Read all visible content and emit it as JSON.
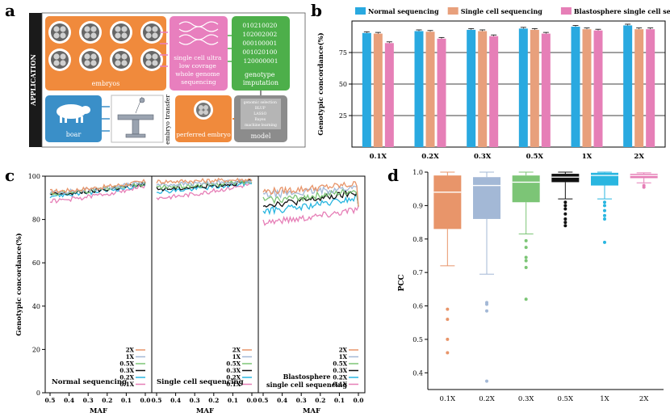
{
  "panels": {
    "a": {
      "letter": "a",
      "side_label": "APPLICATION",
      "embryos_label": "embryos",
      "seq_label_lines": [
        "single cell ultra",
        "low covrage",
        "whole genome",
        "sequencing"
      ],
      "genotype_lines": [
        "010210020",
        "102002002",
        "000100001",
        "001020100",
        "120000001"
      ],
      "imputation_lines": [
        "genotype",
        "imputation"
      ],
      "model_lines": [
        "genomic selection",
        "BLUP",
        "LASSO",
        "Bayes",
        "machine learning"
      ],
      "model_label": "model",
      "preferred_label": "perferred embryo",
      "transfer_label": "embryo transfer",
      "boar_label": "boar",
      "colors": {
        "orange": "#f08a3c",
        "pink": "#e87fbe",
        "green": "#4daf4a",
        "blue": "#3a8fc8",
        "gray": "#8c8c8c"
      }
    },
    "b": {
      "letter": "b"
    },
    "c": {
      "letter": "c"
    },
    "d": {
      "letter": "d"
    }
  },
  "chart_data": [
    {
      "id": "b",
      "type": "bar",
      "ylabel": "Genotypic concordance(%)",
      "ylim": [
        0,
        100
      ],
      "yticks": [
        25,
        50,
        75
      ],
      "categories": [
        "0.1X",
        "0.2X",
        "0.3X",
        "0.5X",
        "1X",
        "2X"
      ],
      "series": [
        {
          "name": "Normal sequencing",
          "color": "#29a9e0",
          "values": [
            90.5,
            92,
            93,
            94,
            95.5,
            96.5
          ]
        },
        {
          "name": "Single cell sequencing",
          "color": "#e8a07c",
          "values": [
            90,
            91.5,
            92,
            93,
            93.5,
            93.5
          ]
        },
        {
          "name": "Blastosphere single cell sequencing",
          "color": "#e67fb7",
          "values": [
            82.5,
            86,
            88,
            90,
            92.5,
            93.5
          ]
        }
      ],
      "legend": "top"
    },
    {
      "id": "c",
      "type": "line",
      "ylabel": "Genotypic concordance(%)",
      "xlabel": "MAF",
      "ylim": [
        0,
        100
      ],
      "yticks": [
        0,
        20,
        40,
        60,
        80,
        100
      ],
      "xticks": [
        "0.5",
        "0.4",
        "0.3",
        "0.2",
        "0.1",
        "0.0"
      ],
      "subplots": [
        "Normal sequencing",
        "Single cell sequencing",
        "Blastosphere single cell sequencing"
      ],
      "series_names": [
        "2X",
        "1X",
        "0.5X",
        "0.3X",
        "0.2X",
        "0.1X"
      ],
      "series_colors": [
        "#e8956a",
        "#a3b8d6",
        "#7cc576",
        "#111111",
        "#29b6e0",
        "#e67fb7"
      ],
      "levels": [
        [
          93,
          92.5,
          92,
          91.5,
          91,
          88.5
        ],
        [
          97.5,
          96,
          95,
          94,
          93,
          90
        ],
        [
          93,
          91.5,
          89,
          87,
          84,
          79
        ]
      ],
      "end_levels": [
        [
          97.5,
          97,
          96.5,
          96.5,
          96,
          95.5
        ],
        [
          98.5,
          98,
          97.5,
          97.5,
          97,
          96.5
        ],
        [
          96.5,
          95,
          93.5,
          92.5,
          90,
          85
        ]
      ]
    },
    {
      "id": "d",
      "type": "box",
      "ylabel": "PCC",
      "ylim": [
        0.35,
        1.0
      ],
      "yticks": [
        0.4,
        0.5,
        0.6,
        0.7,
        0.8,
        0.9,
        1.0
      ],
      "categories": [
        "0.1X",
        "0.2X",
        "0.3X",
        "0.5X",
        "1X",
        "2X"
      ],
      "colors": [
        "#e8956a",
        "#a3b8d6",
        "#7cc576",
        "#111111",
        "#29b6e0",
        "#e67fb7"
      ],
      "boxes": [
        {
          "min": 0.72,
          "q1": 0.83,
          "median": 0.94,
          "q3": 0.99,
          "max": 1.0,
          "outliers": [
            0.59,
            0.56,
            0.5,
            0.46
          ]
        },
        {
          "min": 0.695,
          "q1": 0.86,
          "median": 0.96,
          "q3": 0.985,
          "max": 1.0,
          "outliers": [
            0.61,
            0.605,
            0.585,
            0.375
          ]
        },
        {
          "min": 0.815,
          "q1": 0.91,
          "median": 0.97,
          "q3": 0.99,
          "max": 1.0,
          "outliers": [
            0.795,
            0.775,
            0.745,
            0.735,
            0.715,
            0.62
          ]
        },
        {
          "min": 0.92,
          "q1": 0.97,
          "median": 0.985,
          "q3": 0.995,
          "max": 1.0,
          "outliers": [
            0.91,
            0.9,
            0.89,
            0.875,
            0.86,
            0.85,
            0.84
          ]
        },
        {
          "min": 0.92,
          "q1": 0.96,
          "median": 0.99,
          "q3": 0.998,
          "max": 1.0,
          "outliers": [
            0.91,
            0.9,
            0.885,
            0.87,
            0.86,
            0.79
          ]
        },
        {
          "min": 0.968,
          "q1": 0.982,
          "median": 0.99,
          "q3": 0.995,
          "max": 0.998,
          "outliers": [
            0.96,
            0.955
          ]
        }
      ]
    }
  ]
}
